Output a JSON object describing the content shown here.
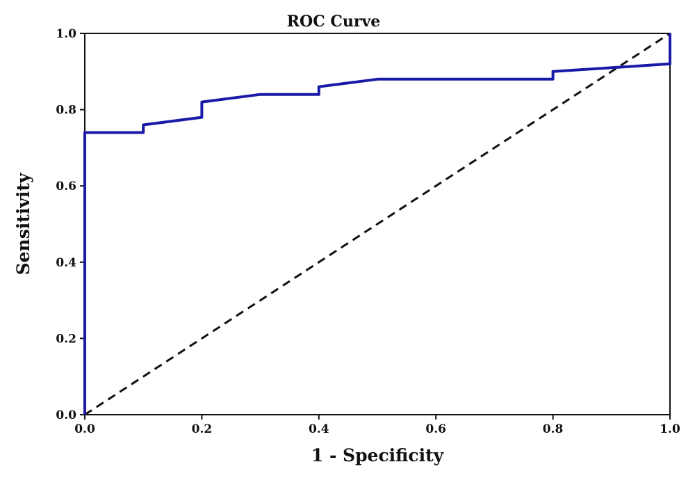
{
  "chart_data": {
    "type": "line",
    "title": "ROC Curve",
    "xlabel": "1 - Specificity",
    "ylabel": "Sensitivity",
    "xlim": [
      0.0,
      1.0
    ],
    "ylim": [
      0.0,
      1.0
    ],
    "x_ticks": [
      "0.0",
      "0.2",
      "0.4",
      "0.6",
      "0.8",
      "1.0"
    ],
    "y_ticks": [
      "0.0",
      "0.2",
      "0.4",
      "0.6",
      "0.8",
      "1.0"
    ],
    "grid": false,
    "legend": "none",
    "series": [
      {
        "style": "solid",
        "color": "#1a1aa8",
        "x": [
          0.0,
          0.0,
          0.1,
          0.1,
          0.2,
          0.2,
          0.3,
          0.4,
          0.4,
          0.5,
          0.8,
          0.8,
          1.0,
          1.0
        ],
        "y": [
          0.0,
          0.74,
          0.74,
          0.76,
          0.78,
          0.82,
          0.84,
          0.84,
          0.86,
          0.88,
          0.88,
          0.9,
          0.92,
          1.0
        ]
      },
      {
        "style": "dashed",
        "color": "#111111",
        "x": [
          0.0,
          1.0
        ],
        "y": [
          0.0,
          1.0
        ]
      }
    ]
  }
}
